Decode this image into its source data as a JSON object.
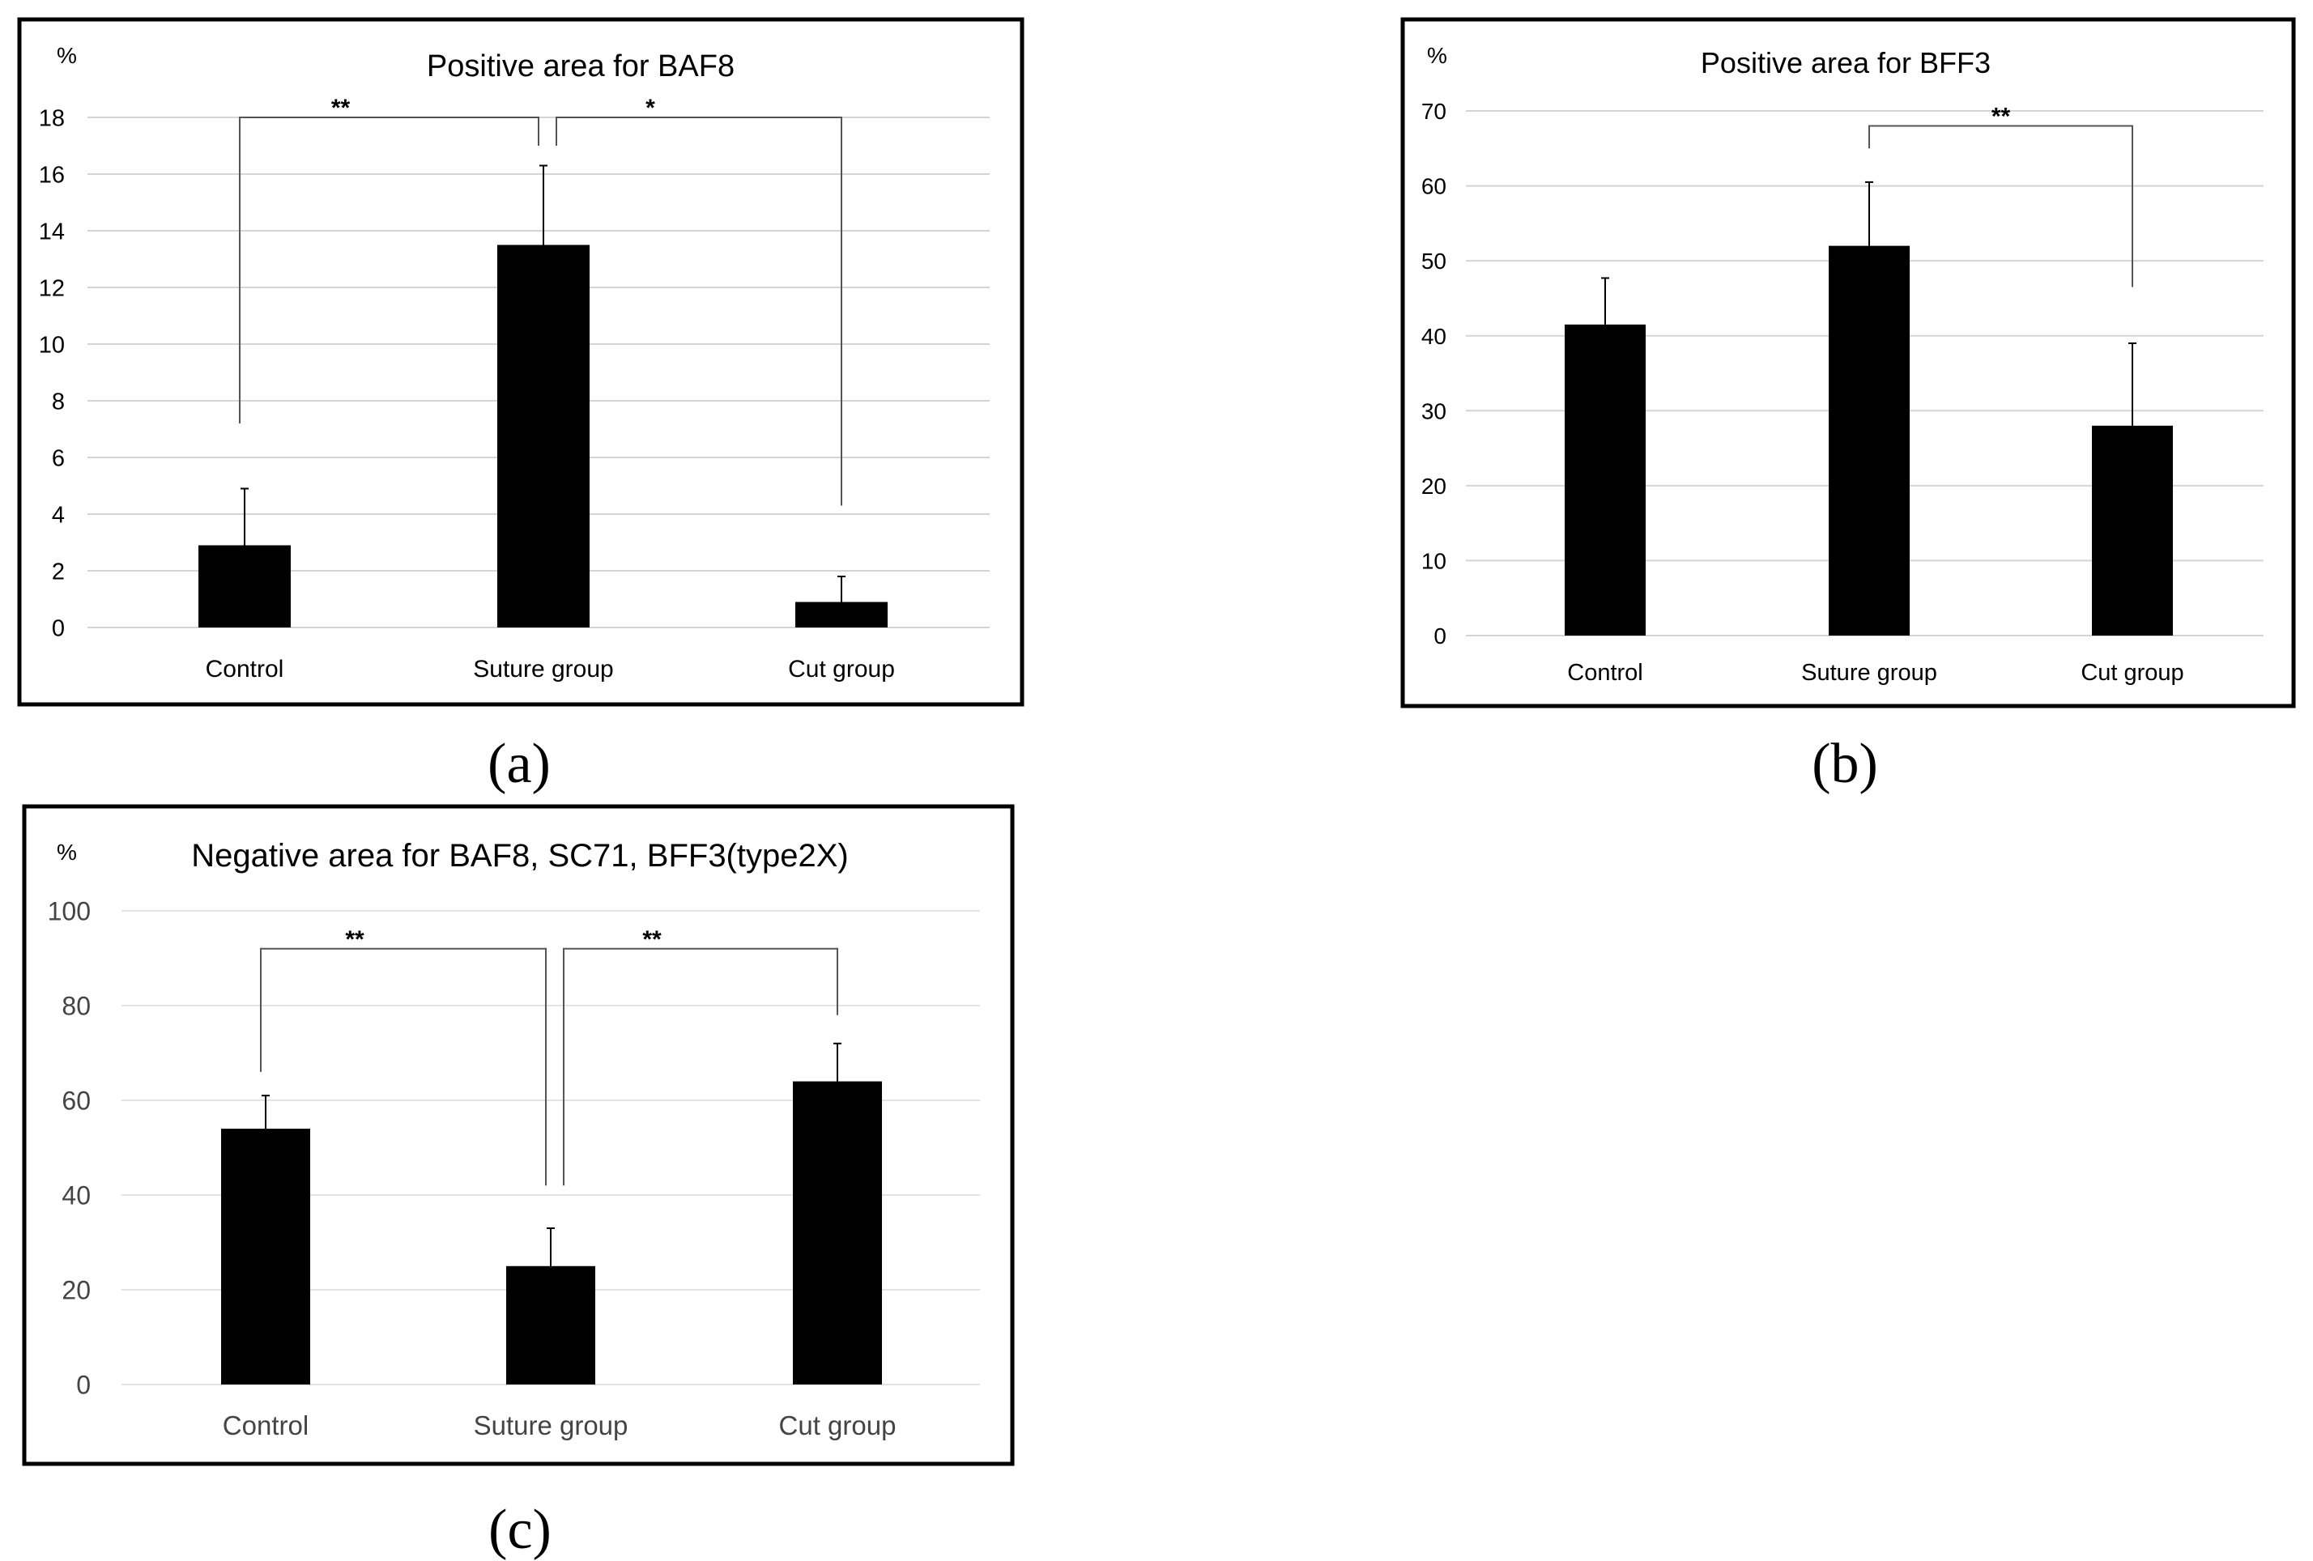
{
  "chart_data": [
    {
      "id": "a",
      "type": "bar",
      "title": "Positive area for BAF8",
      "unit_label": "%",
      "panel_label": "(a)",
      "categories": [
        "Control",
        "Suture group",
        "Cut group"
      ],
      "values": [
        2.9,
        13.5,
        0.9
      ],
      "errors": [
        2.0,
        2.8,
        0.9
      ],
      "ylim": [
        0,
        18
      ],
      "yticks": [
        0,
        2,
        4,
        6,
        8,
        10,
        12,
        14,
        16,
        18
      ],
      "grid": true,
      "legend": "none",
      "bar_color": "#000000",
      "significance": [
        {
          "from": 0,
          "to": 1,
          "label": "**",
          "y": 18,
          "from_drop": 7.2,
          "to_drop": 17.0
        },
        {
          "from": 1,
          "to": 2,
          "label": "*",
          "y": 18,
          "from_drop": 17.0,
          "to_drop": 4.3
        }
      ]
    },
    {
      "id": "b",
      "type": "bar",
      "title": "Positive area for BFF3",
      "unit_label": "%",
      "panel_label": "(b)",
      "categories": [
        "Control",
        "Suture group",
        "Cut group"
      ],
      "values": [
        41.5,
        52,
        28
      ],
      "errors": [
        6.2,
        8.5,
        11
      ],
      "ylim": [
        0,
        70
      ],
      "yticks": [
        0,
        10,
        20,
        30,
        40,
        50,
        60,
        70
      ],
      "grid": true,
      "legend": "none",
      "bar_color": "#000000",
      "significance": [
        {
          "from": 1,
          "to": 2,
          "label": "**",
          "y": 68,
          "from_drop": 65,
          "to_drop": 46.5
        }
      ]
    },
    {
      "id": "c",
      "type": "bar",
      "title": "Negative area for BAF8, SC71, BFF3(type2X)",
      "unit_label": "%",
      "panel_label": "(c)",
      "categories": [
        "Control",
        "Suture group",
        "Cut group"
      ],
      "values": [
        54,
        25,
        64
      ],
      "errors": [
        7,
        8,
        8
      ],
      "ylim": [
        0,
        100
      ],
      "yticks": [
        0,
        20,
        40,
        60,
        80,
        100
      ],
      "grid": true,
      "legend": "none",
      "bar_color": "#000000",
      "significance": [
        {
          "from": 0,
          "to": 1,
          "label": "**",
          "y": 92,
          "from_drop": 66,
          "to_drop": 42
        },
        {
          "from": 1,
          "to": 2,
          "label": "**",
          "y": 92,
          "from_drop": 42,
          "to_drop": 78
        }
      ]
    }
  ]
}
